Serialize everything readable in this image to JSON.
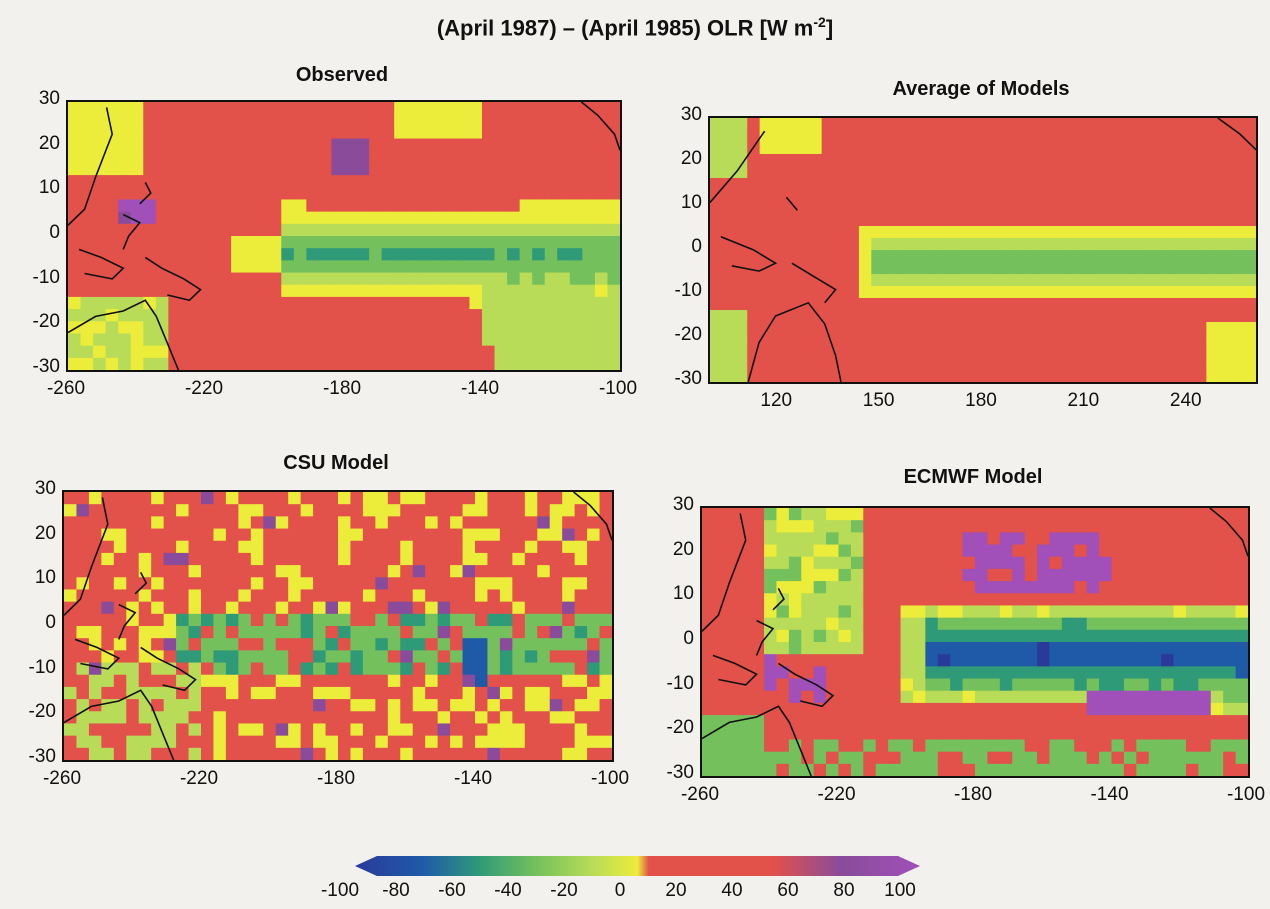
{
  "title_text": "(April 1987) – (April 1985) OLR [W m",
  "title_exp": "-2",
  "title_close": "]",
  "colors": {
    "background": "#f3f1ee",
    "positive_20": "#e2514a",
    "near_zero": "#ecec3a",
    "negative_20": "#b8dc58",
    "negative_40": "#74c05c",
    "negative_60": "#2f9a78",
    "negative_80": "#1f5aa8",
    "negative_100": "#2a3a9a",
    "positive_80": "#8a4c9a",
    "positive_100": "#a050b8",
    "coast": "#111111"
  },
  "chart_data": [
    {
      "type": "heatmap",
      "title": "Observed",
      "xticks": [
        "-260",
        "-220",
        "-180",
        "-140",
        "-100"
      ],
      "xlim": [
        -260,
        -100
      ],
      "yticks": [
        "30",
        "20",
        "10",
        "0",
        "-10",
        "-20",
        "-30"
      ],
      "ylim": [
        -30,
        30
      ],
      "variable": "OLR difference (W m^-2)",
      "pattern": "observed"
    },
    {
      "type": "heatmap",
      "title": "Average of Models",
      "xticks": [
        "120",
        "150",
        "180",
        "210",
        "240"
      ],
      "xlim": [
        100,
        260
      ],
      "yticks": [
        "30",
        "20",
        "10",
        "0",
        "-10",
        "-20",
        "-30"
      ],
      "ylim": [
        -30,
        30
      ],
      "variable": "OLR difference (W m^-2)",
      "pattern": "average"
    },
    {
      "type": "heatmap",
      "title": "CSU Model",
      "xticks": [
        "-260",
        "-220",
        "-180",
        "-140",
        "-100"
      ],
      "xlim": [
        -260,
        -100
      ],
      "yticks": [
        "30",
        "20",
        "10",
        "0",
        "-10",
        "-20",
        "-30"
      ],
      "ylim": [
        -30,
        30
      ],
      "variable": "OLR difference (W m^-2)",
      "pattern": "csu"
    },
    {
      "type": "heatmap",
      "title": "ECMWF Model",
      "xticks": [
        "-260",
        "-220",
        "-180",
        "-140",
        "-100"
      ],
      "xlim": [
        -260,
        -100
      ],
      "yticks": [
        "30",
        "20",
        "10",
        "0",
        "-10",
        "-20",
        "-30"
      ],
      "ylim": [
        -30,
        30
      ],
      "variable": "OLR difference (W m^-2)",
      "pattern": "ecmwf"
    }
  ],
  "colorbar": {
    "labels": [
      "-100",
      "-80",
      "-60",
      "-40",
      "-20",
      "0",
      "20",
      "40",
      "60",
      "80",
      "100"
    ],
    "range": [
      -100,
      100
    ]
  }
}
